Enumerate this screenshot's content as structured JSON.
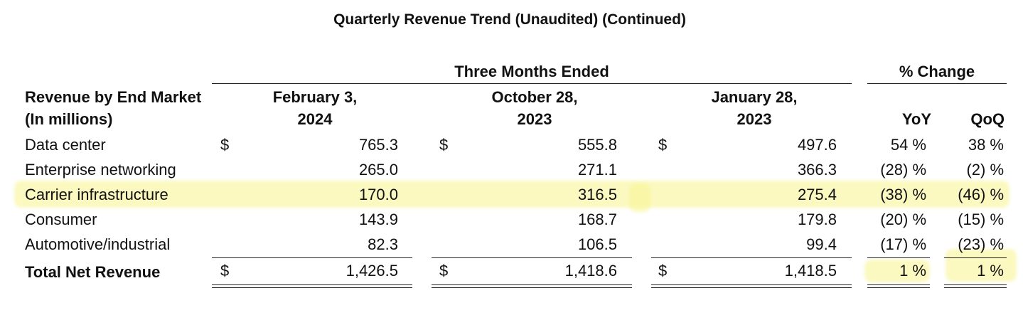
{
  "title": "Quarterly Revenue Trend (Unaudited) (Continued)",
  "header": {
    "group_three_months": "Three Months Ended",
    "group_change": "% Change",
    "row_label_line1": "Revenue by End Market",
    "row_label_line2": "(In millions)",
    "col1_line1": "February 3,",
    "col1_line2": "2024",
    "col2_line1": "October 28,",
    "col2_line2": "2023",
    "col3_line1": "January 28,",
    "col3_line2": "2023",
    "yoy": "YoY",
    "qoq": "QoQ"
  },
  "currency": "$",
  "rows": [
    {
      "label": "Data center",
      "v1": "765.3",
      "v2": "555.8",
      "v3": "497.6",
      "yoy": "54 %",
      "qoq": "38 %",
      "dollar": true
    },
    {
      "label": "Enterprise networking",
      "v1": "265.0",
      "v2": "271.1",
      "v3": "366.3",
      "yoy": "(28) %",
      "qoq": "(2) %",
      "dollar": false
    },
    {
      "label": "Carrier infrastructure",
      "v1": "170.0",
      "v2": "316.5",
      "v3": "275.4",
      "yoy": "(38) %",
      "qoq": "(46) %",
      "dollar": false
    },
    {
      "label": "Consumer",
      "v1": "143.9",
      "v2": "168.7",
      "v3": "179.8",
      "yoy": "(20) %",
      "qoq": "(15) %",
      "dollar": false
    },
    {
      "label": "Automotive/industrial",
      "v1": "82.3",
      "v2": "106.5",
      "v3": "99.4",
      "yoy": "(17) %",
      "qoq": "(23) %",
      "dollar": false
    }
  ],
  "total": {
    "label": "Total Net Revenue",
    "v1": "1,426.5",
    "v2": "1,418.6",
    "v3": "1,418.5",
    "yoy": "1 %",
    "qoq": "1 %"
  },
  "highlight_color": "#f8f596"
}
